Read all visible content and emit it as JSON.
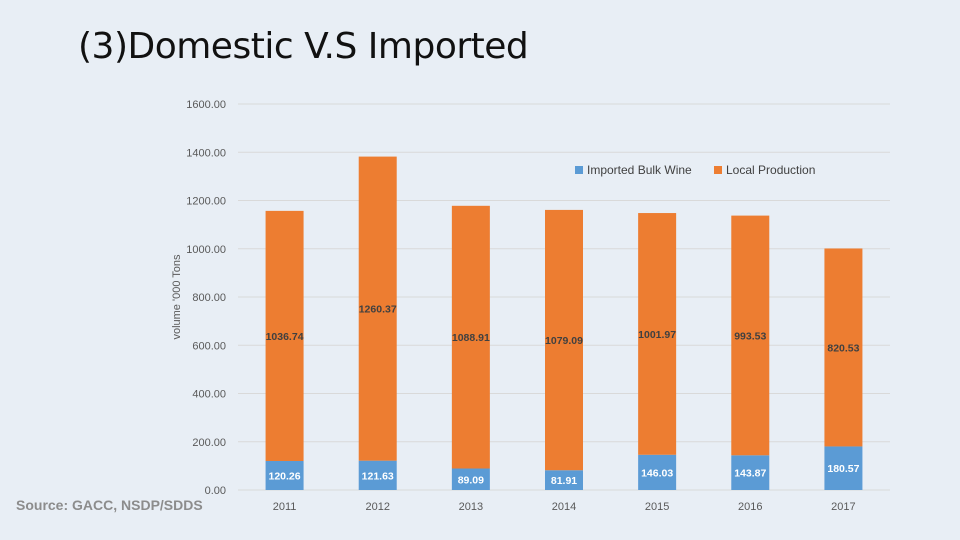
{
  "slide": {
    "title": "(3)Domestic V.S  Imported",
    "source": "Source: GACC, NSDP/SDDS"
  },
  "colors": {
    "imported": "#5b9bd5",
    "local": "#ed7d31",
    "grid": "#d9d9d9",
    "local_label": "#404040",
    "imported_label": "#ffffff"
  },
  "chart_data": {
    "type": "bar",
    "stacked": true,
    "categories": [
      "2011",
      "2012",
      "2013",
      "2014",
      "2015",
      "2016",
      "2017"
    ],
    "series": [
      {
        "name": "Imported Bulk Wine",
        "values": [
          120.26,
          121.63,
          89.09,
          81.91,
          146.03,
          143.87,
          180.57
        ]
      },
      {
        "name": "Local Production",
        "values": [
          1036.74,
          1260.37,
          1088.91,
          1079.09,
          1001.97,
          993.53,
          820.53
        ]
      }
    ],
    "data_labels": {
      "imported": [
        "120.26",
        "121.63",
        "89.09",
        "81.91",
        "146.03",
        "143.87",
        "180.57"
      ],
      "local": [
        "1036.74",
        "1260.37",
        "1088.91",
        "1079.09",
        "1001.97",
        "993.53",
        "820.53"
      ]
    },
    "ylabel": "volume '000 Tons",
    "ylim": [
      0,
      1600
    ],
    "yticks": [
      "0.00",
      "200.00",
      "400.00",
      "600.00",
      "800.00",
      "1000.00",
      "1200.00",
      "1400.00",
      "1600.00"
    ],
    "grid": true,
    "legend_position": "top-right"
  }
}
